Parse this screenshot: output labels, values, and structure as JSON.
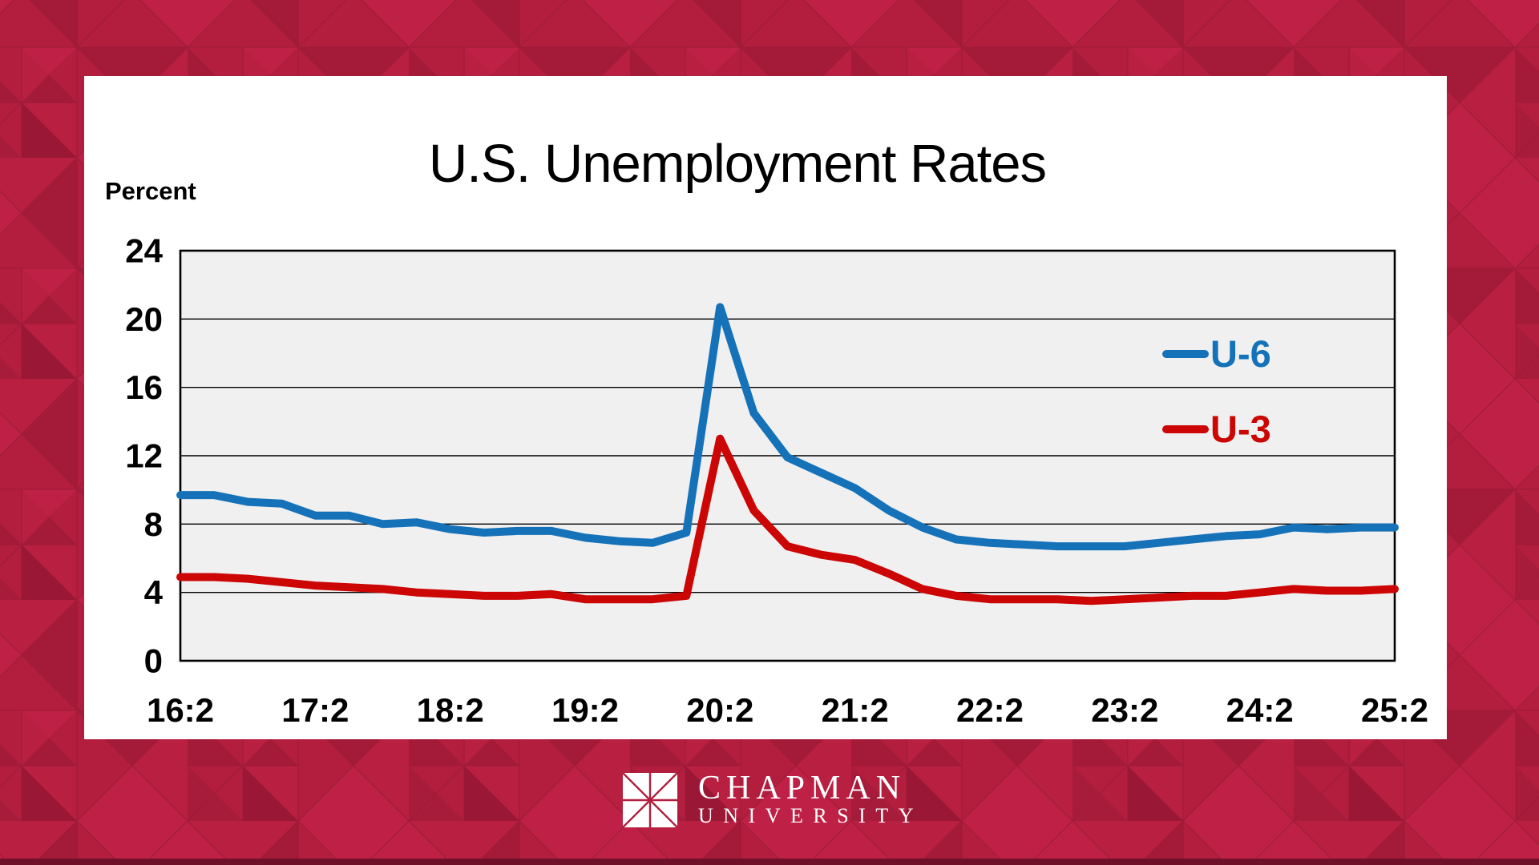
{
  "slide": {
    "title": "U.S. Unemployment Rates",
    "y_axis_title": "Percent",
    "footer_logo": {
      "line1": "CHAPMAN",
      "line2": "UNIVERSITY"
    }
  },
  "colors": {
    "background_crimson": "#B11E3F",
    "panel_white": "#FFFFFF",
    "plot_background": "#F0F0F0",
    "gridline_black": "#000000",
    "u6_blue": "#1572B9",
    "u3_red": "#CC0505",
    "text_black": "#000000",
    "logo_red": "#B11E3F",
    "bottom_strip": "#6E1128"
  },
  "chart_data": {
    "type": "line",
    "title": "U.S. Unemployment Rates",
    "xlabel": "",
    "ylabel": "Percent",
    "ylim": [
      0,
      24
    ],
    "yticks": [
      0,
      4,
      8,
      12,
      16,
      20,
      24
    ],
    "grid": "horizontal",
    "legend_position": "right-middle",
    "x_unit": "year:quarter",
    "xticks": [
      "16:2",
      "17:2",
      "18:2",
      "19:2",
      "20:2",
      "21:2",
      "22:2",
      "23:2",
      "24:2",
      "25:2"
    ],
    "categories": [
      "16:2",
      "16:3",
      "16:4",
      "17:1",
      "17:2",
      "17:3",
      "17:4",
      "18:1",
      "18:2",
      "18:3",
      "18:4",
      "19:1",
      "19:2",
      "19:3",
      "19:4",
      "20:1",
      "20:2",
      "20:3",
      "20:4",
      "21:1",
      "21:2",
      "21:3",
      "21:4",
      "22:1",
      "22:2",
      "22:3",
      "22:4",
      "23:1",
      "23:2",
      "23:3",
      "23:4",
      "24:1",
      "24:2",
      "24:3",
      "24:4",
      "25:1",
      "25:2"
    ],
    "series": [
      {
        "name": "U-6",
        "color": "#1572B9",
        "values": [
          9.7,
          9.7,
          9.3,
          9.2,
          8.5,
          8.5,
          8.0,
          8.1,
          7.7,
          7.5,
          7.6,
          7.6,
          7.2,
          7.0,
          6.9,
          7.5,
          20.7,
          14.5,
          11.9,
          11.0,
          10.1,
          8.8,
          7.8,
          7.1,
          6.9,
          6.8,
          6.7,
          6.7,
          6.7,
          6.9,
          7.1,
          7.3,
          7.4,
          7.8,
          7.7,
          7.8,
          7.8
        ]
      },
      {
        "name": "U-3",
        "color": "#CC0505",
        "values": [
          4.9,
          4.9,
          4.8,
          4.6,
          4.4,
          4.3,
          4.2,
          4.0,
          3.9,
          3.8,
          3.8,
          3.9,
          3.6,
          3.6,
          3.6,
          3.8,
          13.0,
          8.8,
          6.7,
          6.2,
          5.9,
          5.1,
          4.2,
          3.8,
          3.6,
          3.6,
          3.6,
          3.5,
          3.6,
          3.7,
          3.8,
          3.8,
          4.0,
          4.2,
          4.1,
          4.1,
          4.2
        ]
      }
    ]
  }
}
